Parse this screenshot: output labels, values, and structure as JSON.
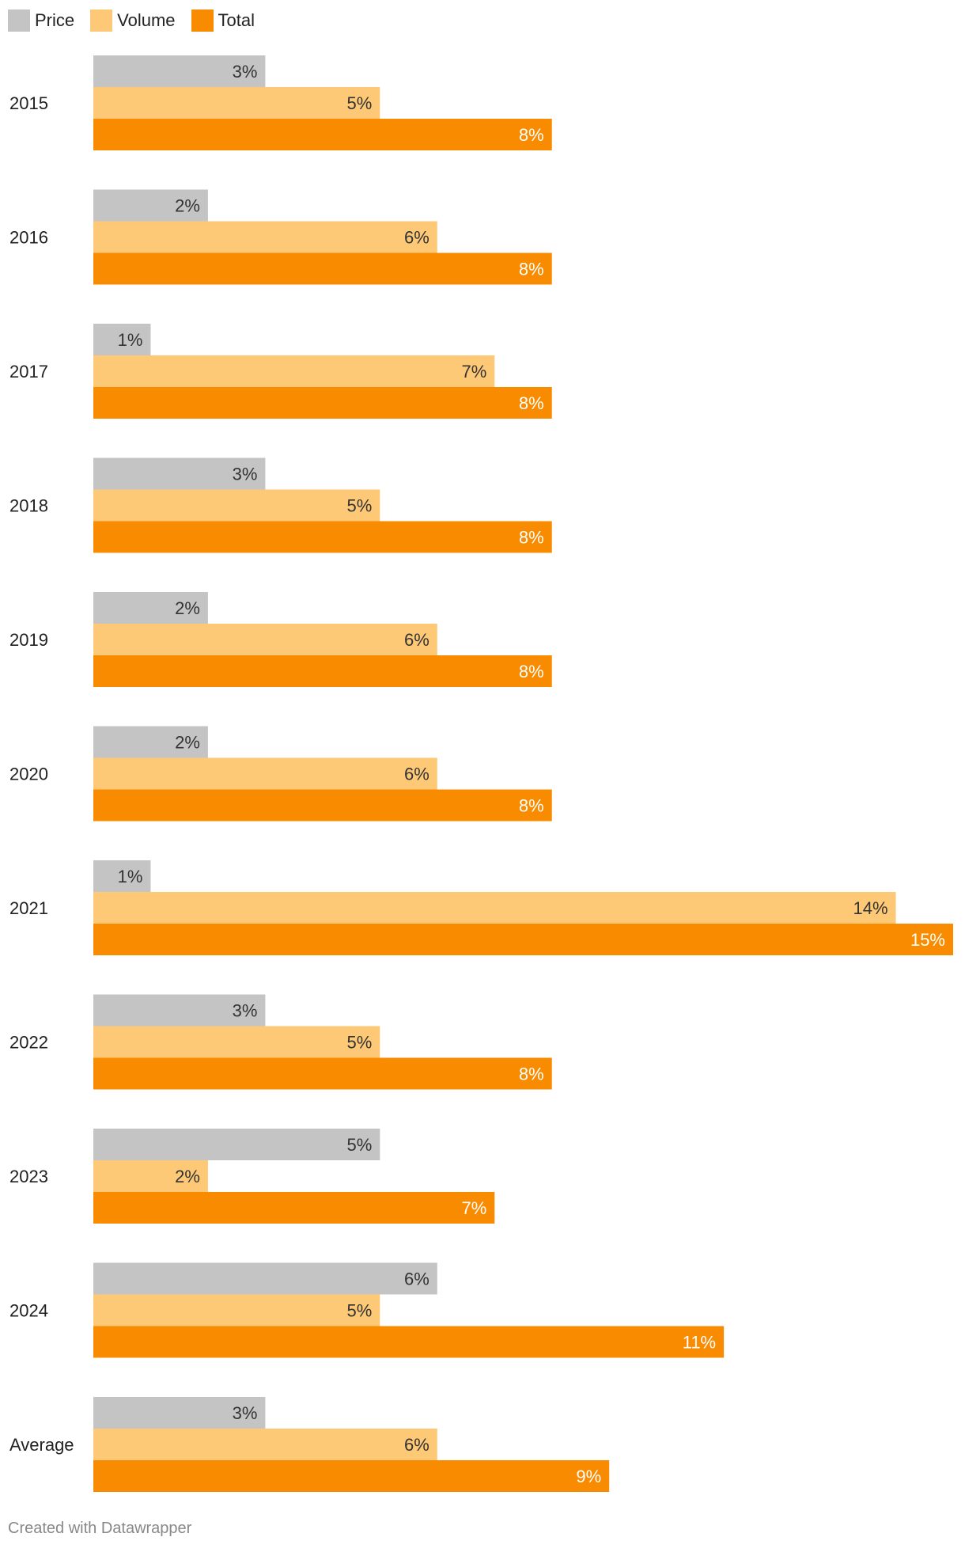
{
  "chart_data": {
    "type": "bar",
    "orientation": "horizontal",
    "title": "",
    "xlabel": "",
    "ylabel": "",
    "categories": [
      "2015",
      "2016",
      "2017",
      "2018",
      "2019",
      "2020",
      "2021",
      "2022",
      "2023",
      "2024",
      "Average"
    ],
    "series": [
      {
        "name": "Price",
        "color": "#c4c4c4",
        "label_color": "#333333",
        "values": [
          3,
          2,
          1,
          3,
          2,
          2,
          1,
          3,
          5,
          6,
          3
        ],
        "labels": [
          "3%",
          "2%",
          "1%",
          "3%",
          "2%",
          "2%",
          "1%",
          "3%",
          "5%",
          "6%",
          "3%"
        ]
      },
      {
        "name": "Volume",
        "color": "#fec977",
        "label_color": "#333333",
        "values": [
          5,
          6,
          7,
          5,
          6,
          6,
          14,
          5,
          2,
          5,
          6
        ],
        "labels": [
          "5%",
          "6%",
          "7%",
          "5%",
          "6%",
          "6%",
          "14%",
          "5%",
          "2%",
          "5%",
          "6%"
        ]
      },
      {
        "name": "Total",
        "color": "#f98b00",
        "label_color": "#ffffff",
        "values": [
          8,
          8,
          8,
          8,
          8,
          8,
          15,
          8,
          7,
          11,
          9
        ],
        "labels": [
          "8%",
          "8%",
          "8%",
          "8%",
          "8%",
          "8%",
          "15%",
          "8%",
          "7%",
          "11%",
          "9%"
        ]
      }
    ],
    "xlim": [
      0,
      15
    ],
    "grid": false,
    "legend_position": "top-left"
  },
  "footer": {
    "credit": "Created with Datawrapper"
  }
}
